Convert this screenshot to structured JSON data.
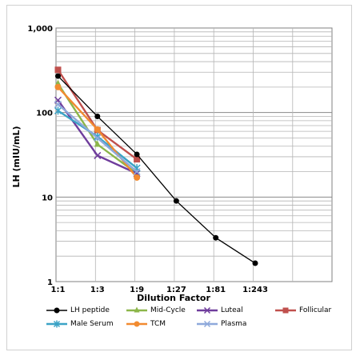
{
  "chart_data": {
    "type": "line",
    "title": "",
    "xlabel": "Dilution Factor",
    "ylabel": "LH (mIU/mL)",
    "y_scale": "log",
    "ylim": [
      1,
      1000
    ],
    "y_tick_labels": [
      "1",
      "10",
      "100",
      "1,000"
    ],
    "categories": [
      "1:1",
      "1:3",
      "1:9",
      "1:27",
      "1:81",
      "1:243"
    ],
    "grid": true,
    "legend_position": "bottom",
    "series": [
      {
        "name": "LH peptide",
        "color": "#000000",
        "marker": "circle",
        "values": [
          270,
          90,
          32,
          9,
          3.3,
          1.65
        ]
      },
      {
        "name": "Mid-Cycle",
        "color": "#8cb64a",
        "marker": "triangle",
        "values": [
          220,
          42,
          19,
          null,
          null,
          null
        ]
      },
      {
        "name": "Luteal",
        "color": "#6f3d9c",
        "marker": "x",
        "values": [
          140,
          31,
          19,
          null,
          null,
          null
        ]
      },
      {
        "name": "Follicular",
        "color": "#c0504d",
        "marker": "square",
        "values": [
          320,
          62,
          28,
          null,
          null,
          null
        ]
      },
      {
        "name": "Male Serum",
        "color": "#3ba3c6",
        "marker": "star",
        "values": [
          105,
          52,
          22,
          null,
          null,
          null
        ]
      },
      {
        "name": "TCM",
        "color": "#f28b30",
        "marker": "circle",
        "values": [
          200,
          63,
          17,
          null,
          null,
          null
        ]
      },
      {
        "name": "Plasma",
        "color": "#8ea9db",
        "marker": "x",
        "values": [
          125,
          50,
          20,
          null,
          null,
          null
        ]
      }
    ]
  }
}
